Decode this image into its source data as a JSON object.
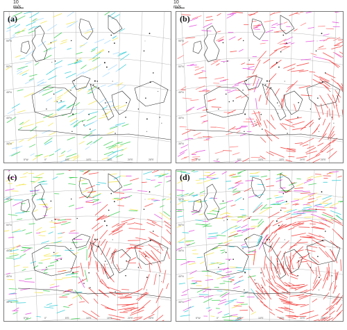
{
  "scale_bars": [
    {
      "id": "left",
      "label": "10 m/s"
    },
    {
      "id": "right",
      "label": "10 m/s"
    }
  ],
  "panels": [
    {
      "id": "a",
      "label": "(a)",
      "colors": [
        "#21c8d4",
        "#f2e23a",
        "#27c93f",
        "#9dd6ff"
      ]
    },
    {
      "id": "b",
      "label": "(b)",
      "colors": [
        "#f0322f",
        "#e03bd8",
        "#ff6d6d"
      ]
    },
    {
      "id": "c",
      "label": "(c)",
      "colors": [
        "#f0322f",
        "#e03bd8",
        "#f2e23a",
        "#21c8d4",
        "#27c93f"
      ]
    },
    {
      "id": "d",
      "label": "(d)",
      "colors": [
        "#f0322f",
        "#e03bd8",
        "#f2e23a",
        "#21c8d4",
        "#27c93f"
      ]
    }
  ],
  "lat_labels": [
    "55°N",
    "50°N",
    "45°N",
    "40°N",
    "35°N"
  ],
  "lon_labels": [
    "5°W",
    "0°",
    "5°E",
    "10°E",
    "15°E",
    "20°E",
    "25°E"
  ]
}
